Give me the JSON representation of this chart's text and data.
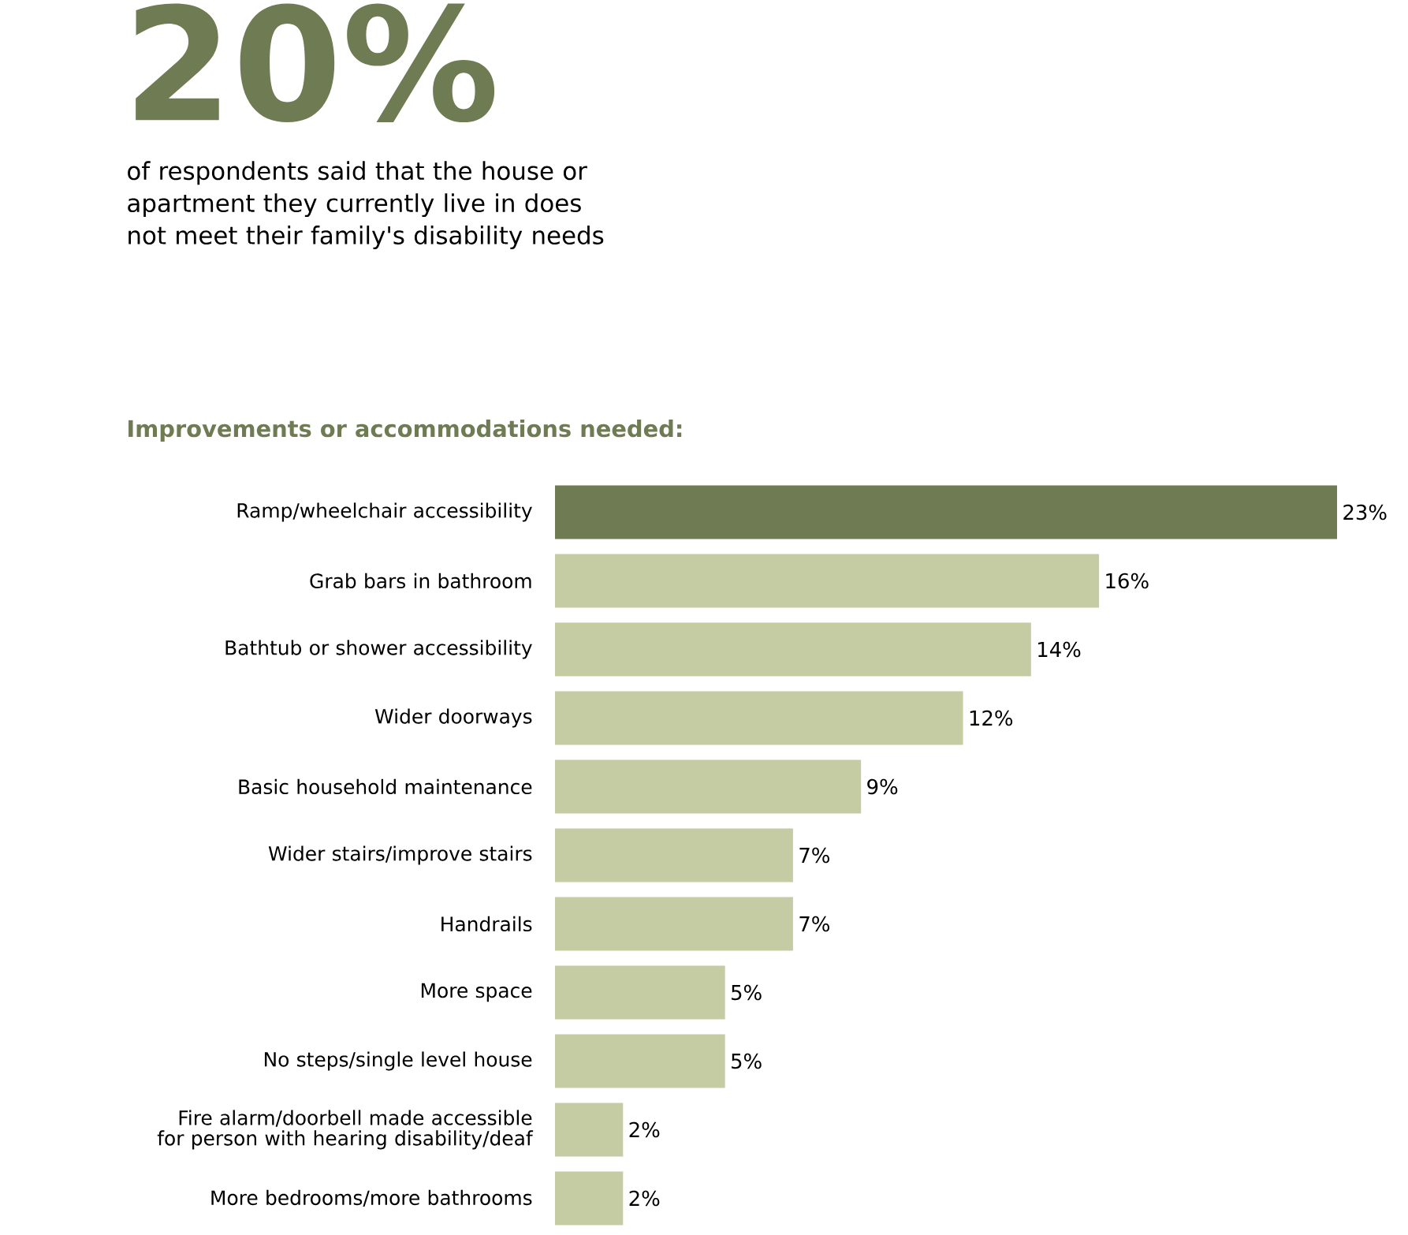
{
  "chart_data": {
    "type": "bar",
    "orientation": "horizontal",
    "title": "20%",
    "subtitle": "of respondents said that the house or apartment they currently live in does not meet their family's disability needs",
    "annotations": [
      "Improvements or accommodations needed:"
    ],
    "categories": [
      "Ramp/wheelchair accessibility",
      "Grab bars in bathroom",
      "Bathtub or shower accessibility",
      "Wider doorways",
      "Basic household maintenance",
      "Wider stairs/improve stairs",
      "Handrails",
      "More space",
      "No steps/single level house",
      "Fire alarm/doorbell made accessible for person with hearing disability/deaf",
      "More bedrooms/more bathrooms"
    ],
    "values": [
      23,
      16,
      14,
      12,
      9,
      7,
      7,
      5,
      5,
      2,
      2
    ],
    "value_labels": [
      "23%",
      "16%",
      "14%",
      "12%",
      "9%",
      "7%",
      "7%",
      "5%",
      "5%",
      "2%",
      "2%"
    ],
    "colors": [
      "#6e7b53",
      "#c5cca3",
      "#c5cca3",
      "#c5cca3",
      "#c5cca3",
      "#c5cca3",
      "#c5cca3",
      "#c5cca3",
      "#c5cca3",
      "#c5cca3",
      "#c5cca3"
    ]
  }
}
